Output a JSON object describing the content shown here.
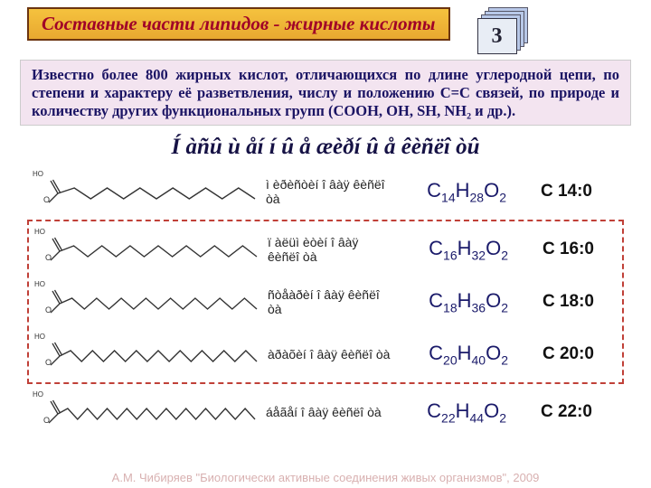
{
  "title": "Составные части липидов - жирные кислоты",
  "page_number": "3",
  "intro_text": "Известно более 800 жирных кислот, отличающихся по длине углеродной цепи, по степени и характеру её разветвления, числу и положению С=С связей, по природе и количеству других функциональных групп (СООН, ОН, SH, NH₂ и др.).",
  "section_heading": "Í àñû ù åí í û å   æèðí û å  êèñëî òû",
  "acids": [
    {
      "name": "ì èðèñòèí î âàÿ êèñëî òà",
      "formula_html": "C<sub>14</sub>H<sub>28</sub>O<sub>2</sub>",
      "shorthand": "С 14:0",
      "segments": 12,
      "highlighted": false
    },
    {
      "name": "ï àëüì èòèí î âàÿ êèñëî òà",
      "formula_html": "C<sub>16</sub>H<sub>32</sub>O<sub>2</sub>",
      "shorthand": "С 16:0",
      "segments": 14,
      "highlighted": true
    },
    {
      "name": "ñòåàðèí î âàÿ êèñëî òà",
      "formula_html": "C<sub>18</sub>H<sub>36</sub>O<sub>2</sub>",
      "shorthand": "С 18:0",
      "segments": 16,
      "highlighted": true
    },
    {
      "name": "àðàõèí î âàÿ êèñëî òà",
      "formula_html": "C<sub>20</sub>H<sub>40</sub>O<sub>2</sub>",
      "shorthand": "С 20:0",
      "segments": 18,
      "highlighted": true
    },
    {
      "name": "áåãåí î âàÿ êèñëî òà",
      "formula_html": "C<sub>22</sub>H<sub>44</sub>O<sub>2</sub>",
      "shorthand": "С 22:0",
      "segments": 20,
      "highlighted": false
    }
  ],
  "footer": "А.М. Чибиряев \"Биологически активные соединения живых организмов\", 2009",
  "colors": {
    "banner_bg_top": "#f5c23e",
    "banner_bg_bottom": "#e8a830",
    "banner_border": "#6b3410",
    "banner_text": "#a00028",
    "intro_bg": "#f3e4f0",
    "intro_text": "#1b1464",
    "heading_text": "#161245",
    "formula_text": "#1a1a6a",
    "dashed_border": "#c04038",
    "page_stack_fill": "#b8c8e8",
    "chain_stroke": "#333333"
  }
}
